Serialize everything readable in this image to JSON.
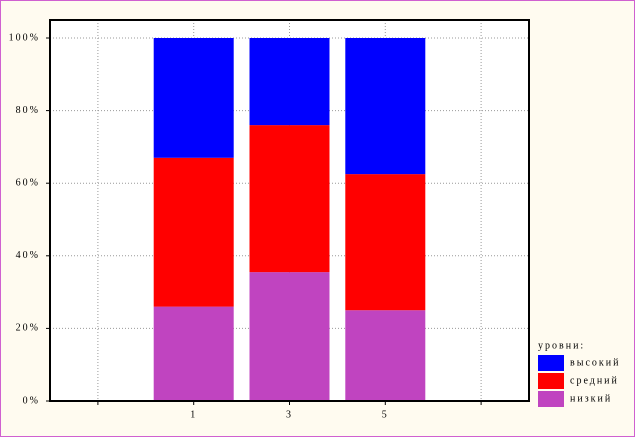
{
  "chart_data": {
    "type": "stacked_bar",
    "categories": [
      null,
      "1",
      "3",
      "5",
      null
    ],
    "series": [
      {
        "name": "низкий",
        "color": "#c044c0",
        "values": [
          null,
          26,
          35.5,
          25,
          null
        ]
      },
      {
        "name": "средний",
        "color": "#ff0000",
        "values": [
          null,
          41,
          40.5,
          37.5,
          null
        ]
      },
      {
        "name": "высокий",
        "color": "#0000ff",
        "values": [
          null,
          33,
          24,
          37.5,
          null
        ]
      }
    ],
    "ylim": [
      0,
      100
    ],
    "yticks": [
      {
        "value": 0,
        "label": "0%"
      },
      {
        "value": 20,
        "label": "20%"
      },
      {
        "value": 40,
        "label": "40%"
      },
      {
        "value": 60,
        "label": "60%"
      },
      {
        "value": 80,
        "label": "80%"
      },
      {
        "value": 100,
        "label": "100%"
      }
    ],
    "grid": true,
    "legend_title": "уровни:",
    "legend": "bottom-right"
  }
}
